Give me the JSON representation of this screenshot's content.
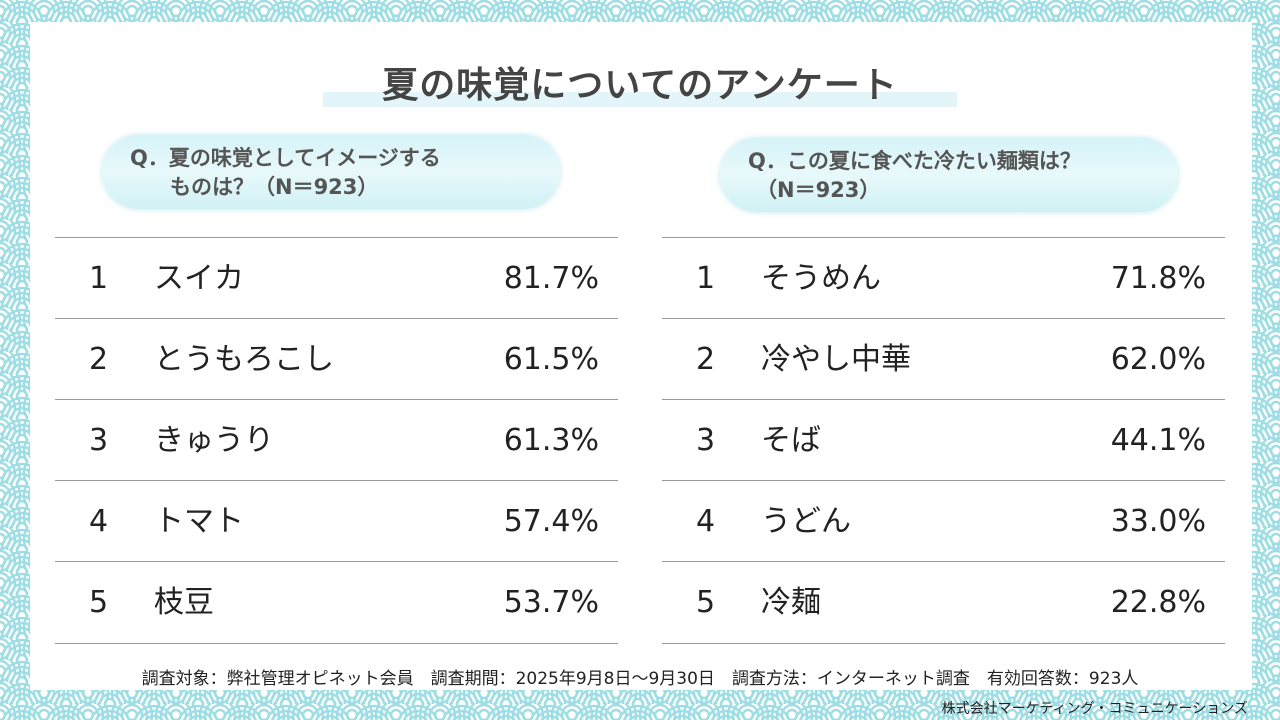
{
  "title": "夏の味覚についてのアンケート",
  "left": {
    "question_line1": "Q．夏の味覚としてイメージする",
    "question_line2": "ものは？（N＝923）",
    "rows": [
      {
        "rank": "1",
        "item": "スイカ",
        "pct": "81.7%"
      },
      {
        "rank": "2",
        "item": "とうもろこし",
        "pct": "61.5%"
      },
      {
        "rank": "3",
        "item": "きゅうり",
        "pct": "61.3%"
      },
      {
        "rank": "4",
        "item": "トマト",
        "pct": "57.4%"
      },
      {
        "rank": "5",
        "item": "枝豆",
        "pct": "53.7%"
      }
    ]
  },
  "right": {
    "question_line1": "Q．この夏に食べた冷たい麺類は？",
    "question_line2": "（N＝923）",
    "rows": [
      {
        "rank": "1",
        "item": "そうめん",
        "pct": "71.8%"
      },
      {
        "rank": "2",
        "item": "冷やし中華",
        "pct": "62.0%"
      },
      {
        "rank": "3",
        "item": "そば",
        "pct": "44.1%"
      },
      {
        "rank": "4",
        "item": "うどん",
        "pct": "33.0%"
      },
      {
        "rank": "5",
        "item": "冷麺",
        "pct": "22.8%"
      }
    ]
  },
  "footer": "調査対象：弊社管理オピネット会員　調査期間：2025年9月8日～9月30日　調査方法：インターネット調査　有効回答数：923人",
  "credit": "株式会社マーケティング・コミュニケーションズ",
  "colors": {
    "wave": "#9fdde4",
    "band": "#e3f5f8"
  }
}
